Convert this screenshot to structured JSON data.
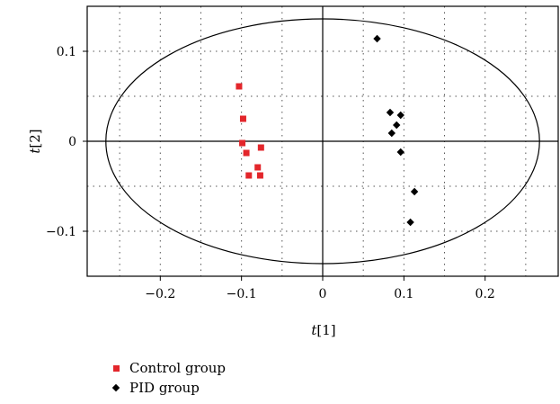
{
  "chart_data": {
    "type": "scatter",
    "xlabel": {
      "var": "t",
      "index": "[1]"
    },
    "ylabel": {
      "var": "t",
      "index": "[2]"
    },
    "xlim": [
      -0.29,
      0.29
    ],
    "ylim": [
      -0.15,
      0.15
    ],
    "x_ticks": [
      -0.2,
      -0.1,
      0,
      0.1,
      0.2
    ],
    "x_tick_labels": [
      "−0.2",
      "−0.1",
      "0",
      "0.1",
      "0.2"
    ],
    "y_ticks": [
      -0.1,
      0,
      0.1
    ],
    "y_tick_labels": [
      "−0.1",
      "0",
      "0.1"
    ],
    "grid": true,
    "ellipse": {
      "center": [
        0,
        0
      ],
      "rx": 0.267,
      "ry": 0.136
    },
    "legend_position": "bottom-left",
    "series": [
      {
        "name": "Control group",
        "marker": "square",
        "color": "#e3262b",
        "points": [
          [
            -0.103,
            0.061
          ],
          [
            -0.098,
            0.025
          ],
          [
            -0.099,
            -0.002
          ],
          [
            -0.094,
            -0.013
          ],
          [
            -0.076,
            -0.007
          ],
          [
            -0.08,
            -0.029
          ],
          [
            -0.091,
            -0.038
          ],
          [
            -0.077,
            -0.038
          ]
        ]
      },
      {
        "name": "PID group",
        "marker": "diamond",
        "color": "#000000",
        "points": [
          [
            0.067,
            0.114
          ],
          [
            0.083,
            0.032
          ],
          [
            0.096,
            0.029
          ],
          [
            0.091,
            0.018
          ],
          [
            0.085,
            0.009
          ],
          [
            0.096,
            -0.012
          ],
          [
            0.113,
            -0.056
          ],
          [
            0.108,
            -0.09
          ]
        ]
      }
    ]
  }
}
